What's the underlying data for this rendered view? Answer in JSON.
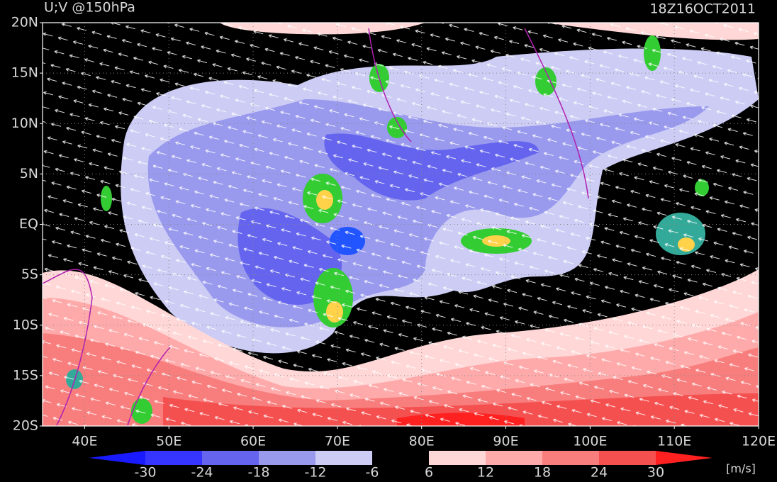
{
  "map": {
    "title": "U;V @150hPa",
    "time": "18Z16OCT2011",
    "xlim": [
      35,
      120
    ],
    "ylim": [
      -20,
      20
    ],
    "lat_ticks": [
      {
        "value": 20,
        "label": "20N"
      },
      {
        "value": 15,
        "label": "15N"
      },
      {
        "value": 10,
        "label": "10N"
      },
      {
        "value": 5,
        "label": "5N"
      },
      {
        "value": 0,
        "label": "EQ"
      },
      {
        "value": -5,
        "label": "5S"
      },
      {
        "value": -10,
        "label": "10S"
      },
      {
        "value": -15,
        "label": "15S"
      },
      {
        "value": -20,
        "label": "20S"
      }
    ],
    "lon_ticks": [
      {
        "value": 40,
        "label": "40E"
      },
      {
        "value": 50,
        "label": "50E"
      },
      {
        "value": 60,
        "label": "60E"
      },
      {
        "value": 70,
        "label": "70E"
      },
      {
        "value": 80,
        "label": "80E"
      },
      {
        "value": 90,
        "label": "90E"
      },
      {
        "value": 100,
        "label": "100E"
      },
      {
        "value": 110,
        "label": "110E"
      },
      {
        "value": 120,
        "label": "120E"
      }
    ],
    "colorbar": {
      "levels": [
        -30,
        -24,
        -18,
        -12,
        -6,
        6,
        12,
        18,
        24,
        30
      ],
      "colors": [
        "#1a1aff",
        "#3535ff",
        "#6464ee",
        "#9999ee",
        "#ccccf5",
        "#000000",
        "#ffd7d7",
        "#ffaaaa",
        "#f87e7e",
        "#f55050",
        "#ff2020"
      ],
      "units": "[m/s]"
    }
  }
}
